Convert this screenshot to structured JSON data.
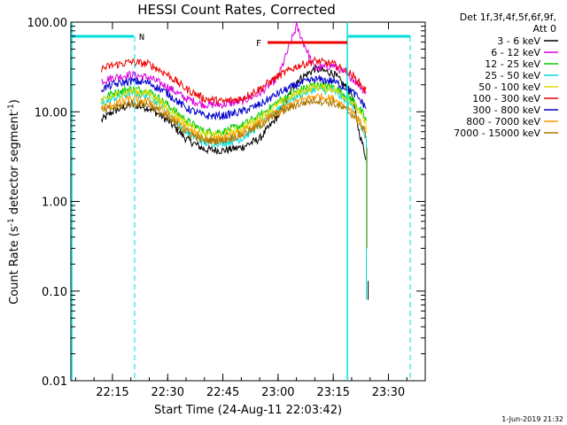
{
  "chart_data": {
    "type": "line",
    "title": "HESSI Count Rates, Corrected",
    "xlabel": "Start Time (24-Aug-11 22:03:42)",
    "ylabel": "Count Rate (s⁻¹ detector segment⁻¹)",
    "ylabel_parts": [
      "Count Rate (s",
      "-1",
      " detector segment",
      "-1",
      ")"
    ],
    "yscale": "log",
    "ylim": [
      0.01,
      100
    ],
    "xlim": [
      "22:03:42",
      "23:40:00"
    ],
    "x_ticks": [
      "22:15",
      "22:30",
      "22:45",
      "23:00",
      "23:15",
      "23:30"
    ],
    "y_ticks": [
      "0.01",
      "0.10",
      "1.00",
      "10.00",
      "100.00"
    ],
    "grid": false,
    "legend_position": "top-right",
    "legend_header": [
      "Det 1f,3f,4f,5f,6f,9f,",
      "Att 0"
    ],
    "x": [
      "22:12",
      "22:15",
      "22:20",
      "22:25",
      "22:30",
      "22:35",
      "22:40",
      "22:45",
      "22:50",
      "22:55",
      "23:00",
      "23:05",
      "23:10",
      "23:15",
      "23:20",
      "23:22",
      "23:24"
    ],
    "series": [
      {
        "name": "3 - 6 keV",
        "color": "#000000",
        "values": [
          8,
          10,
          12,
          11,
          8,
          5,
          3.8,
          3.7,
          4,
          5,
          9,
          22,
          30,
          27,
          16,
          6,
          3
        ]
      },
      {
        "name": "6 - 12 keV",
        "color": "#dd00dd",
        "values": [
          22,
          24,
          26,
          24,
          19,
          14,
          12,
          12,
          13,
          16,
          24,
          90,
          30,
          33,
          24,
          20,
          16
        ]
      },
      {
        "name": "12 - 25 keV",
        "color": "#00cc00",
        "values": [
          14,
          16,
          18,
          17,
          12,
          8,
          6,
          6,
          7,
          9,
          13,
          17,
          20,
          19,
          14,
          11,
          8
        ]
      },
      {
        "name": "25 - 50 keV",
        "color": "#00dddd",
        "values": [
          12,
          14,
          16,
          15,
          10,
          6,
          4.5,
          4.5,
          5,
          7,
          11,
          15,
          18,
          17,
          12,
          8,
          5
        ]
      },
      {
        "name": "50 - 100 keV",
        "color": "#dddd00",
        "values": [
          13,
          15,
          17,
          16,
          11,
          7.5,
          5.5,
          5.5,
          6.5,
          8.5,
          12,
          16,
          19,
          18,
          13,
          10,
          7
        ]
      },
      {
        "name": "100 - 300 keV",
        "color": "#ee0000",
        "values": [
          30,
          33,
          36,
          34,
          26,
          18,
          14,
          13,
          14,
          18,
          25,
          32,
          37,
          34,
          26,
          21,
          17
        ]
      },
      {
        "name": "300 - 800 keV",
        "color": "#0000cc",
        "values": [
          18,
          20,
          22,
          21,
          16,
          11,
          9,
          9,
          10,
          12,
          16,
          20,
          23,
          22,
          17,
          14,
          11
        ]
      },
      {
        "name": "800 - 7000 keV",
        "color": "#ff9900",
        "values": [
          11,
          12,
          14,
          13,
          9.5,
          6.5,
          5,
          5,
          5.8,
          7.5,
          10,
          13,
          15,
          14,
          10.5,
          8,
          6
        ]
      },
      {
        "name": "7000 - 15000 keV",
        "color": "#aa7700",
        "values": [
          10,
          11,
          12.5,
          12,
          8.5,
          6,
          4.8,
          4.8,
          5.5,
          7,
          9.5,
          12,
          13.5,
          12.5,
          9.5,
          7.5,
          5.5
        ]
      }
    ],
    "annotations": [
      {
        "label": "N",
        "color": "#00dddd"
      },
      {
        "label": "F",
        "color": "#ee0000"
      }
    ],
    "footer": "1-Jun-2019 21:32"
  }
}
